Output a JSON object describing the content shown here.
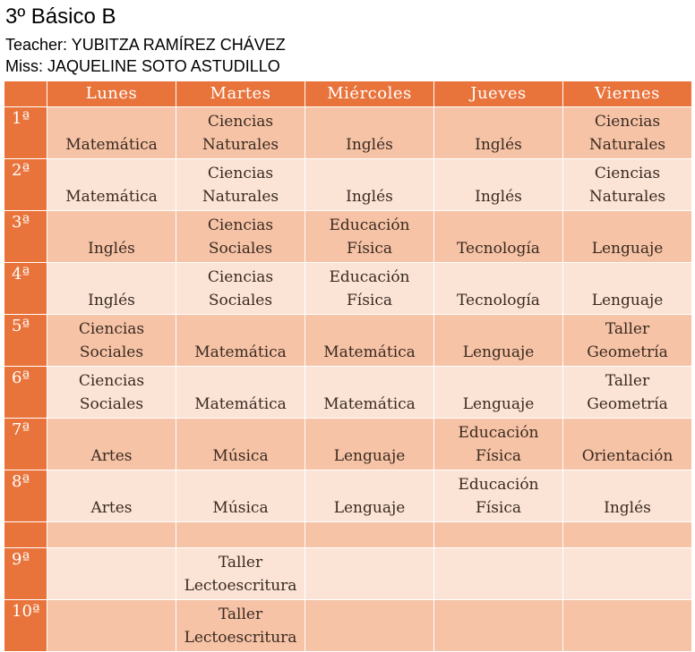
{
  "header": {
    "title": "3º Básico B",
    "teacher": "Teacher: YUBITZA RAMÍREZ CHÁVEZ",
    "miss": "Miss: JAQUELINE SOTO ASTUDILLO"
  },
  "days": [
    "Lunes",
    "Martes",
    "Miércoles",
    "Jueves",
    "Viernes"
  ],
  "rows": [
    {
      "period": "1ª",
      "cells": [
        "Matemática",
        "Ciencias\nNaturales",
        "Inglés",
        "Inglés",
        "Ciencias\nNaturales"
      ]
    },
    {
      "period": "2ª",
      "cells": [
        "Matemática",
        "Ciencias\nNaturales",
        "Inglés",
        "Inglés",
        "Ciencias\nNaturales"
      ]
    },
    {
      "period": "3ª",
      "cells": [
        "Inglés",
        "Ciencias\nSociales",
        "Educación\nFísica",
        "Tecnología",
        "Lenguaje"
      ]
    },
    {
      "period": "4ª",
      "cells": [
        "Inglés",
        "Ciencias\nSociales",
        "Educación\nFísica",
        "Tecnología",
        "Lenguaje"
      ]
    },
    {
      "period": "5ª",
      "cells": [
        "Ciencias\nSociales",
        "Matemática",
        "Matemática",
        "Lenguaje",
        "Taller\nGeometría"
      ]
    },
    {
      "period": "6ª",
      "cells": [
        "Ciencias\nSociales",
        "Matemática",
        "Matemática",
        "Lenguaje",
        "Taller\nGeometría"
      ]
    },
    {
      "period": "7ª",
      "cells": [
        "Artes",
        "Música",
        "Lenguaje",
        "Educación\nFísica",
        "Orientación"
      ]
    },
    {
      "period": "8ª",
      "cells": [
        "Artes",
        "Música",
        "Lenguaje",
        "Educación\nFísica",
        "Inglés"
      ]
    },
    {
      "period": "",
      "cells": [
        "",
        "",
        "",
        "",
        ""
      ]
    },
    {
      "period": "9ª",
      "cells": [
        "",
        "Taller\nLectoescritura",
        "",
        "",
        ""
      ]
    },
    {
      "period": "10ª",
      "cells": [
        "",
        "Taller\nLectoescritura",
        "",
        "",
        ""
      ]
    }
  ],
  "colors": {
    "header_orange": "#e8743c",
    "row_dark": "#f6c3a6",
    "row_light": "#fbe3d6"
  }
}
